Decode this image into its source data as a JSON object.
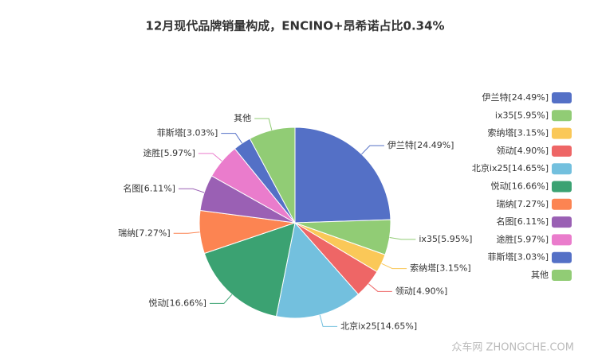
{
  "chart_data": {
    "type": "pie",
    "title": "12月现代品牌销量构成，ENCINO+昂希诺占比0.34%",
    "categories": [
      "伊兰特[24.49%]",
      "ix35[5.95%]",
      "索纳塔[3.15%]",
      "领动[4.90%]",
      "北京ix25[14.65%]",
      "悦动[16.66%]",
      "瑞纳[7.27%]",
      "名图[6.11%]",
      "途胜[5.97%]",
      "菲斯塔[3.03%]",
      "其他"
    ],
    "values": [
      24.49,
      5.95,
      3.15,
      4.9,
      14.65,
      16.66,
      7.27,
      6.11,
      5.97,
      3.03,
      7.82
    ],
    "colors": [
      "#5470c6",
      "#91cc75",
      "#fac858",
      "#ee6666",
      "#73c0de",
      "#3ba272",
      "#fc8452",
      "#9a60b4",
      "#ea7ccc",
      "#5470c6",
      "#91cc75"
    ],
    "legend": "right",
    "watermark": "众车网 ZHONGCHE.COM"
  }
}
